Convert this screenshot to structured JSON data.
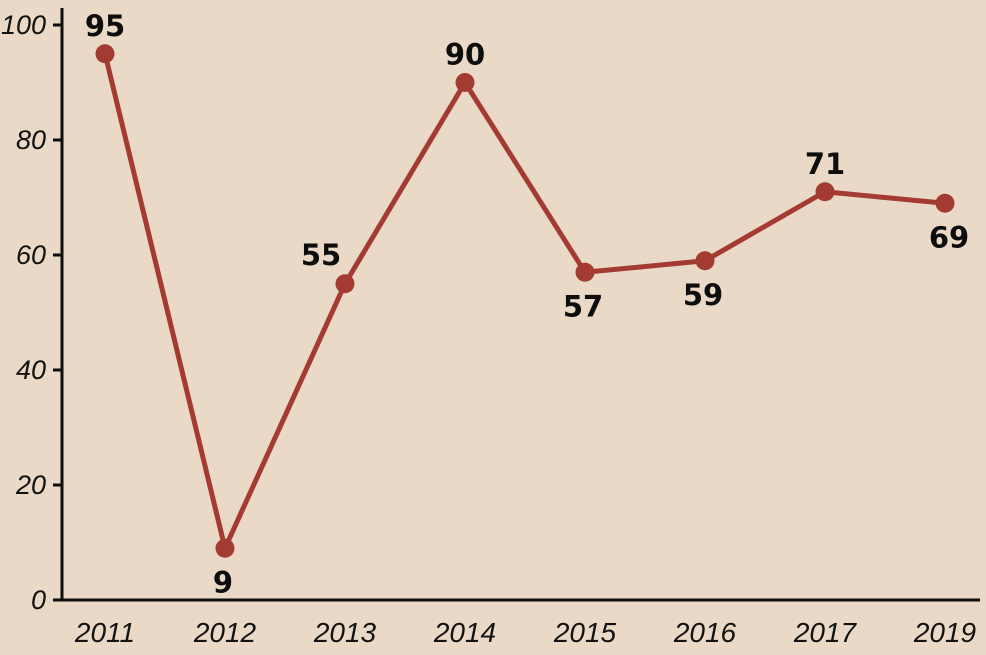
{
  "chart_data": {
    "type": "line",
    "categories": [
      "2011",
      "2012",
      "2013",
      "2014",
      "2015",
      "2016",
      "2017",
      "2019"
    ],
    "values": [
      95,
      9,
      55,
      90,
      57,
      59,
      71,
      69
    ],
    "title": "",
    "xlabel": "",
    "ylabel": "",
    "ylim": [
      0,
      100
    ],
    "yticks": [
      0,
      20,
      40,
      60,
      80,
      100
    ],
    "grid": false,
    "legend_position": "none",
    "label_positions": [
      "above",
      "below",
      "above-left",
      "above",
      "below",
      "below",
      "above",
      "below-right"
    ]
  },
  "colors": {
    "background": "#e9d9c6",
    "line": "#a43b33",
    "marker": "#a43b33",
    "axis": "#0d0d0d",
    "tick_label": "#121212",
    "data_label": "#0d0d0d"
  }
}
